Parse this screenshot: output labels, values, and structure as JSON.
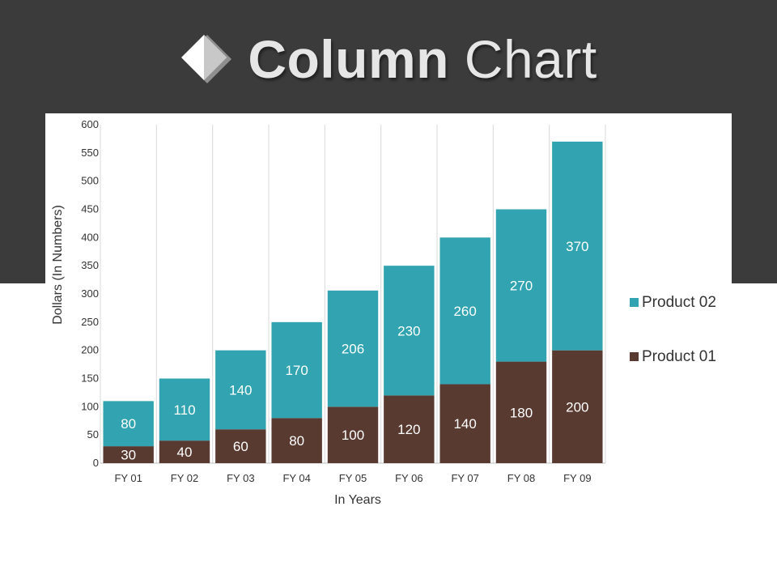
{
  "header": {
    "title_bold": "Column",
    "title_rest": "Chart",
    "icon": "diamond-icon",
    "band_color": "#3b3b3b"
  },
  "chart_data": {
    "type": "bar",
    "stacked": true,
    "title": "Column Chart",
    "xlabel": "In Years",
    "ylabel": "Dollars (In Numbers)",
    "ylim": [
      0,
      600
    ],
    "yticks": [
      0,
      50,
      100,
      150,
      200,
      250,
      300,
      350,
      400,
      450,
      500,
      550,
      600
    ],
    "categories": [
      "FY 01",
      "FY 02",
      "FY 03",
      "FY 04",
      "FY 05",
      "FY 06",
      "FY 07",
      "FY 08",
      "FY 09"
    ],
    "series": [
      {
        "name": "Product 01",
        "color": "#583a31",
        "values": [
          30,
          40,
          60,
          80,
          100,
          120,
          140,
          180,
          200
        ]
      },
      {
        "name": "Product 02",
        "color": "#31a3b1",
        "values": [
          80,
          110,
          140,
          170,
          206,
          230,
          260,
          270,
          370
        ]
      }
    ],
    "legend": {
      "placement": "right",
      "order": [
        "Product 02",
        "Product 01"
      ]
    },
    "grid": {
      "vertical": true,
      "horizontal": false,
      "color": "#d9d9d9"
    }
  }
}
